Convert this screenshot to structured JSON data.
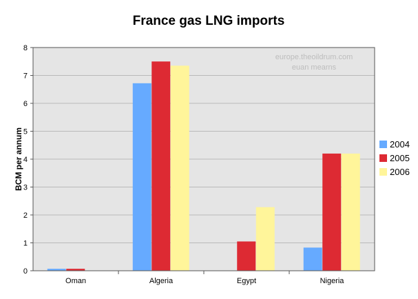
{
  "chart_data": {
    "type": "bar",
    "title": "France gas LNG imports",
    "ylabel": "BCM per annum",
    "xlabel": "",
    "categories": [
      "Oman",
      "Algeria",
      "Egypt",
      "Nigeria"
    ],
    "series": [
      {
        "name": "2004",
        "values": [
          0.07,
          6.72,
          0,
          0.83
        ],
        "color": "#66aaff"
      },
      {
        "name": "2005",
        "values": [
          0.07,
          7.5,
          1.05,
          4.2
        ],
        "color": "#dd2a33"
      },
      {
        "name": "2006",
        "values": [
          0,
          7.35,
          2.28,
          4.2
        ],
        "color": "#fff59a"
      }
    ],
    "ylim": [
      0,
      8
    ],
    "yticks": [
      "0",
      "1",
      "2",
      "3",
      "4",
      "5",
      "6",
      "7",
      "8"
    ],
    "grid": true,
    "legend_position": "right",
    "watermark": [
      "europe.theoildrum.com",
      "euan mearns"
    ],
    "colors": {
      "plot_background": "#e5e5e5",
      "grid": "#aaaaaa",
      "axis": "#555555"
    }
  }
}
